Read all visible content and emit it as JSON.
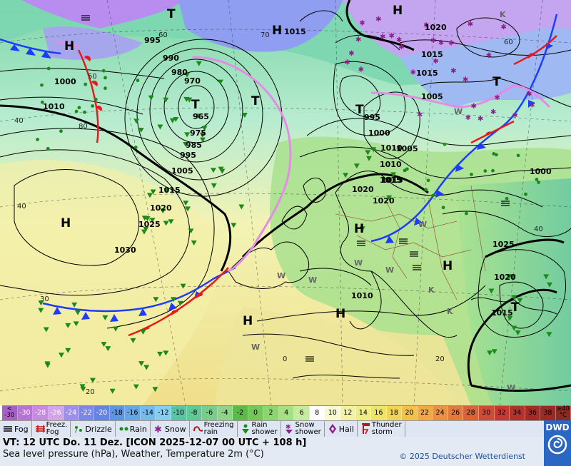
{
  "map": {
    "colors": {
      "ocean_cold": "#5fc6a0",
      "ocean_mild": "#f4f3a5",
      "land_mild": "#8ed98a",
      "snow_purple": "#c08ae0",
      "cold_front": "#1e3cff",
      "warm_front": "#e8191a",
      "occlusion": "#e48ce6",
      "trough": "#000000"
    },
    "pressure_labels": [
      "995",
      "990",
      "980",
      "970",
      "1000",
      "1010",
      "965",
      "975",
      "985",
      "995",
      "1005",
      "1015",
      "1020",
      "1025",
      "1030",
      "1015",
      "1005",
      "1000",
      "995",
      "1010",
      "1015",
      "1020",
      "1020",
      "1015",
      "1010",
      "1005",
      "1000",
      "1025",
      "1020",
      "1015",
      "1010",
      "1020",
      "1015"
    ],
    "centers": [
      "T",
      "H",
      "T",
      "T",
      "T",
      "H",
      "H",
      "H",
      "H",
      "H",
      "H",
      "T",
      "T",
      "H"
    ],
    "center_values": [
      "1015"
    ],
    "temp_labels": [
      "60",
      "50",
      "40",
      "70",
      "80",
      "60",
      "40",
      "30",
      "20",
      "20",
      "0",
      "40"
    ],
    "wind_labels": [
      "W",
      "W",
      "W",
      "W",
      "W",
      "W",
      "W",
      "W",
      "K",
      "K",
      "K"
    ]
  },
  "scale": {
    "first_top": "<",
    "first_bottom": "-30",
    "values": [
      "-30",
      "-28",
      "-26",
      "-24",
      "-22",
      "-20",
      "-18",
      "-16",
      "-14",
      "-12",
      "-10",
      "-8",
      "-6",
      "-4",
      "-2",
      "0",
      "2",
      "4",
      "6",
      "8",
      "10",
      "12",
      "14",
      "16",
      "18",
      "20",
      "22",
      "24",
      "26",
      "28",
      "30",
      "32",
      "34",
      "36",
      "38"
    ],
    "last_top": "≥40",
    "last_bottom": "°C",
    "colors": [
      "#a95fc8",
      "#b673d4",
      "#c48be0",
      "#d2a5eb",
      "#9d8ff0",
      "#7c86ea",
      "#6583e2",
      "#5e94e0",
      "#63a7e6",
      "#72bbec",
      "#86ceee",
      "#5cc2a4",
      "#62c896",
      "#78cc8c",
      "#8ed386",
      "#5fb84b",
      "#73c65a",
      "#8cd56f",
      "#a6e085",
      "#c6ea9f",
      "#ffffff",
      "#fafad0",
      "#f4f3a5",
      "#f0ec86",
      "#ece46c",
      "#f0d457",
      "#f2c24a",
      "#f0a944",
      "#ea9040",
      "#e4783d",
      "#dc6038",
      "#d04b35",
      "#c23a32",
      "#b4322e",
      "#a72a2a",
      "#9a2a22",
      "#8c2a20"
    ]
  },
  "legend": {
    "items": [
      {
        "icon": "fog-icon",
        "label": "Fog"
      },
      {
        "icon": "freezing-fog-icon",
        "label": "Freez.",
        "label2": "Fog"
      },
      {
        "icon": "drizzle-icon",
        "label": "Drizzle"
      },
      {
        "icon": "rain-icon",
        "label": "Rain"
      },
      {
        "icon": "snow-icon",
        "label": "Snow"
      },
      {
        "icon": "freezing-rain-icon",
        "label": "Freezing",
        "label2": "rain"
      },
      {
        "icon": "rain-shower-icon",
        "label": "Rain",
        "label2": "shower"
      },
      {
        "icon": "snow-shower-icon",
        "label": "Snow",
        "label2": "shower"
      },
      {
        "icon": "hail-icon",
        "label": "Hail"
      },
      {
        "icon": "thunderstorm-icon",
        "label": "Thunder",
        "label2": "storm"
      }
    ]
  },
  "info": {
    "valid_time": "VT: 12 UTC Do.  11 Dez. [ICON 2025-12-07  00 UTC + 108 h]",
    "subtitle": "Sea level pressure (hPa), Weather, Temperature 2m (°C)",
    "copyright": "© 2025 Deutscher Wetterdienst"
  },
  "logo": {
    "text": "DWD"
  }
}
